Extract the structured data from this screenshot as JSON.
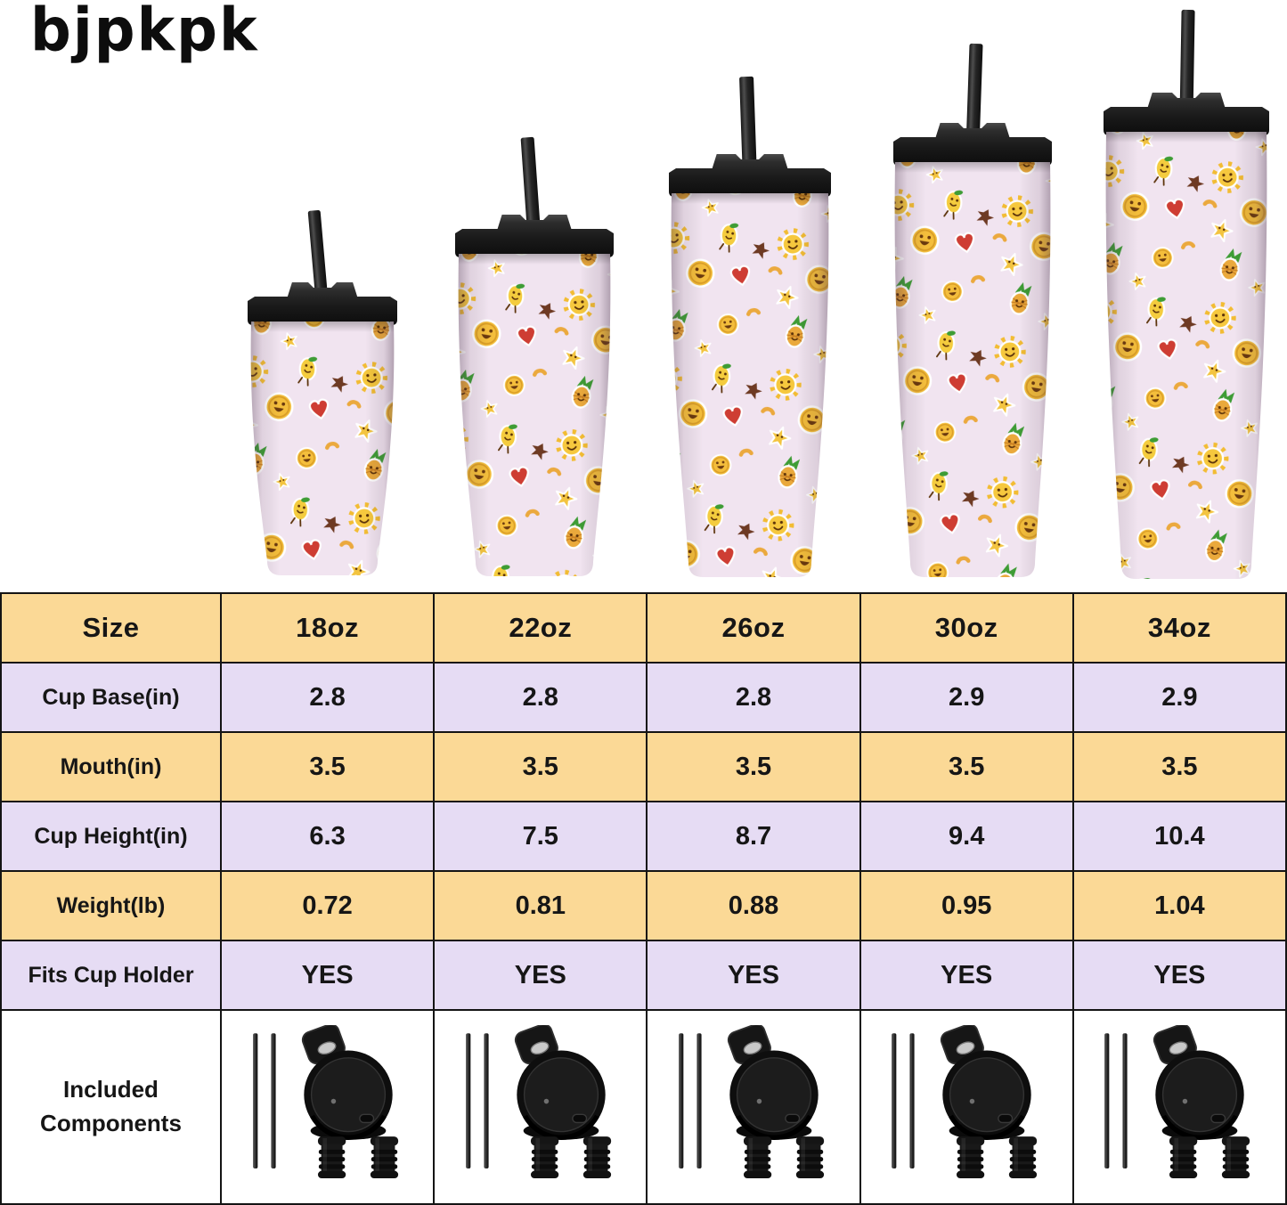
{
  "brand": {
    "logo_text": "bjpkpk"
  },
  "colors": {
    "row_yellow": "#FBD996",
    "row_lavender": "#E6DCF4",
    "table_border": "#141414",
    "text": "#161616",
    "cup_body_pink": "#F1E4F0",
    "lid_black": "#1C1C1C",
    "sticker_yellow": "#F5C33B"
  },
  "table": {
    "header": {
      "label": "Size",
      "columns": [
        "18oz",
        "22oz",
        "26oz",
        "30oz",
        "34oz"
      ]
    },
    "rows": [
      {
        "label": "Cup Base(in)",
        "values": [
          "2.8",
          "2.8",
          "2.8",
          "2.9",
          "2.9"
        ]
      },
      {
        "label": "Mouth(in)",
        "values": [
          "3.5",
          "3.5",
          "3.5",
          "3.5",
          "3.5"
        ]
      },
      {
        "label": "Cup Height(in)",
        "values": [
          "6.3",
          "7.5",
          "8.7",
          "9.4",
          "10.4"
        ]
      },
      {
        "label": "Weight(lb)",
        "values": [
          "0.72",
          "0.81",
          "0.88",
          "0.95",
          "1.04"
        ]
      },
      {
        "label": "Fits Cup Holder",
        "values": [
          "YES",
          "YES",
          "YES",
          "YES",
          "YES"
        ]
      }
    ],
    "components_row": {
      "label": "Included Components",
      "items": [
        "stainless-straws-x2",
        "flip-top-lid",
        "straw-stoppers-x2"
      ]
    }
  }
}
